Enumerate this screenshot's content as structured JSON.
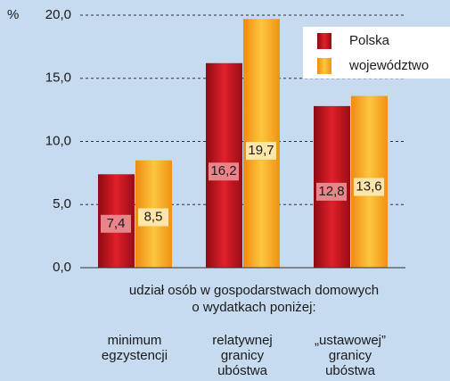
{
  "chart_data": {
    "type": "bar",
    "y_unit": "%",
    "categories": [
      [
        "minimum",
        "egzystencji"
      ],
      [
        "relatywnej",
        "granicy",
        "ubóstwa"
      ],
      [
        "„ustawowej”",
        "granicy",
        "ubóstwa"
      ]
    ],
    "x_axis_label": [
      "udział osób w gospodarstwach domowych",
      "o wydatkach poniżej:"
    ],
    "series": [
      {
        "name": "Polska",
        "color": "#c8141e",
        "values": [
          7.4,
          16.2,
          12.8
        ],
        "value_labels": [
          "7,4",
          "16,2",
          "12,8"
        ]
      },
      {
        "name": "województwo",
        "color": "#f7a21b",
        "values": [
          8.5,
          19.7,
          13.6
        ],
        "value_labels": [
          "8,5",
          "19,7",
          "13,6"
        ]
      }
    ],
    "ylim": [
      0,
      20
    ],
    "yticks": [
      {
        "value": 0,
        "label": "0,0"
      },
      {
        "value": 5,
        "label": "5,0"
      },
      {
        "value": 10,
        "label": "10,0"
      },
      {
        "value": 15,
        "label": "15,0"
      },
      {
        "value": 20,
        "label": "20,0"
      }
    ],
    "grid": true,
    "legend": "top-right"
  }
}
